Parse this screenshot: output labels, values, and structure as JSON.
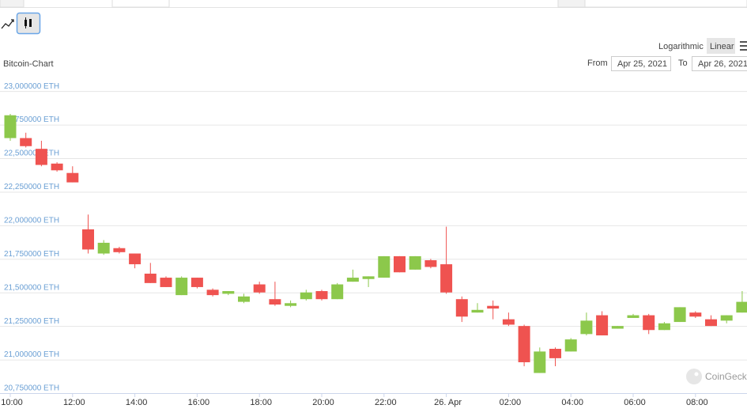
{
  "ui": {
    "chart_name": "Bitcoin-Chart",
    "scale_buttons": [
      "Logarithmic",
      "Linear"
    ],
    "from_label": "From",
    "from_date": "Apr 25, 2021",
    "to_label": "To",
    "to_date": "Apr 26, 2021",
    "watermark": "CoinGecko"
  },
  "chart_data": {
    "type": "candlestick",
    "up_color": "#8cc84b",
    "down_color": "#ef5350",
    "grid": true,
    "categories": [
      "10:00",
      null,
      null,
      null,
      "12:00",
      null,
      null,
      null,
      "14:00",
      null,
      null,
      null,
      "16:00",
      null,
      null,
      null,
      "18:00",
      null,
      null,
      null,
      "20:00",
      null,
      null,
      null,
      "22:00",
      null,
      null,
      null,
      "26. Apr",
      null,
      null,
      null,
      "02:00",
      null,
      null,
      null,
      "04:00",
      null,
      null,
      null,
      "06:00",
      null,
      null,
      null,
      "08:00",
      null,
      null,
      null
    ],
    "open": [
      22.65,
      22.65,
      22.57,
      22.46,
      22.39,
      21.97,
      21.79,
      21.83,
      21.79,
      21.64,
      21.61,
      21.48,
      21.61,
      21.52,
      21.49,
      21.43,
      21.56,
      21.45,
      21.4,
      21.45,
      21.51,
      21.45,
      21.58,
      21.6,
      21.61,
      21.77,
      21.67,
      21.74,
      21.71,
      21.45,
      21.35,
      21.4,
      21.3,
      21.25,
      20.9,
      21.08,
      21.06,
      21.19,
      21.33,
      21.23,
      21.31,
      21.33,
      21.22,
      21.28,
      21.35,
      21.3,
      21.29,
      21.35
    ],
    "high": [
      22.83,
      22.69,
      22.63,
      22.47,
      22.44,
      22.08,
      21.89,
      21.84,
      21.79,
      21.72,
      21.62,
      21.62,
      21.61,
      21.53,
      21.51,
      21.49,
      21.58,
      21.58,
      21.44,
      21.52,
      21.52,
      21.57,
      21.67,
      21.62,
      21.77,
      21.77,
      21.77,
      21.75,
      21.99,
      21.47,
      21.42,
      21.44,
      21.35,
      21.26,
      21.09,
      21.09,
      21.16,
      21.35,
      21.36,
      21.25,
      21.34,
      21.34,
      21.28,
      21.39,
      21.36,
      21.33,
      21.33,
      21.51
    ],
    "low": [
      22.63,
      22.58,
      22.44,
      22.4,
      22.32,
      21.79,
      21.78,
      21.79,
      21.68,
      21.57,
      21.54,
      21.48,
      21.53,
      21.47,
      21.48,
      21.42,
      21.49,
      21.4,
      21.39,
      21.44,
      21.44,
      21.45,
      21.58,
      21.54,
      21.61,
      21.65,
      21.67,
      21.68,
      21.49,
      21.28,
      21.35,
      21.3,
      21.25,
      20.95,
      20.9,
      20.95,
      21.06,
      21.18,
      21.18,
      21.23,
      21.31,
      21.19,
      21.22,
      21.28,
      21.31,
      21.25,
      21.27,
      21.35
    ],
    "close": [
      22.82,
      22.59,
      22.45,
      22.41,
      22.32,
      21.82,
      21.87,
      21.8,
      21.71,
      21.57,
      21.54,
      21.61,
      21.54,
      21.48,
      21.51,
      21.47,
      21.5,
      21.41,
      21.42,
      21.5,
      21.45,
      21.56,
      21.61,
      21.62,
      21.77,
      21.65,
      21.77,
      21.69,
      21.5,
      21.32,
      21.37,
      21.38,
      21.26,
      20.98,
      21.06,
      21.01,
      21.15,
      21.29,
      21.18,
      21.25,
      21.33,
      21.22,
      21.27,
      21.39,
      21.32,
      21.25,
      21.33,
      21.43
    ],
    "ylim": [
      20.75,
      23.06
    ],
    "yticks": [
      {
        "value": 20.75,
        "label": "20,750000 ETH"
      },
      {
        "value": 21,
        "label": "21,000000 ETH"
      },
      {
        "value": 21.25,
        "label": "21,250000 ETH"
      },
      {
        "value": 21.5,
        "label": "21,500000 ETH"
      },
      {
        "value": 21.75,
        "label": "21,750000 ETH"
      },
      {
        "value": 22,
        "label": "22,000000 ETH"
      },
      {
        "value": 22.25,
        "label": "22,250000 ETH"
      },
      {
        "value": 22.5,
        "label": "22,500000 ETH"
      },
      {
        "value": 22.75,
        "label": "22,750000 ETH"
      },
      {
        "value": 23,
        "label": "23,000000 ETH"
      }
    ]
  }
}
